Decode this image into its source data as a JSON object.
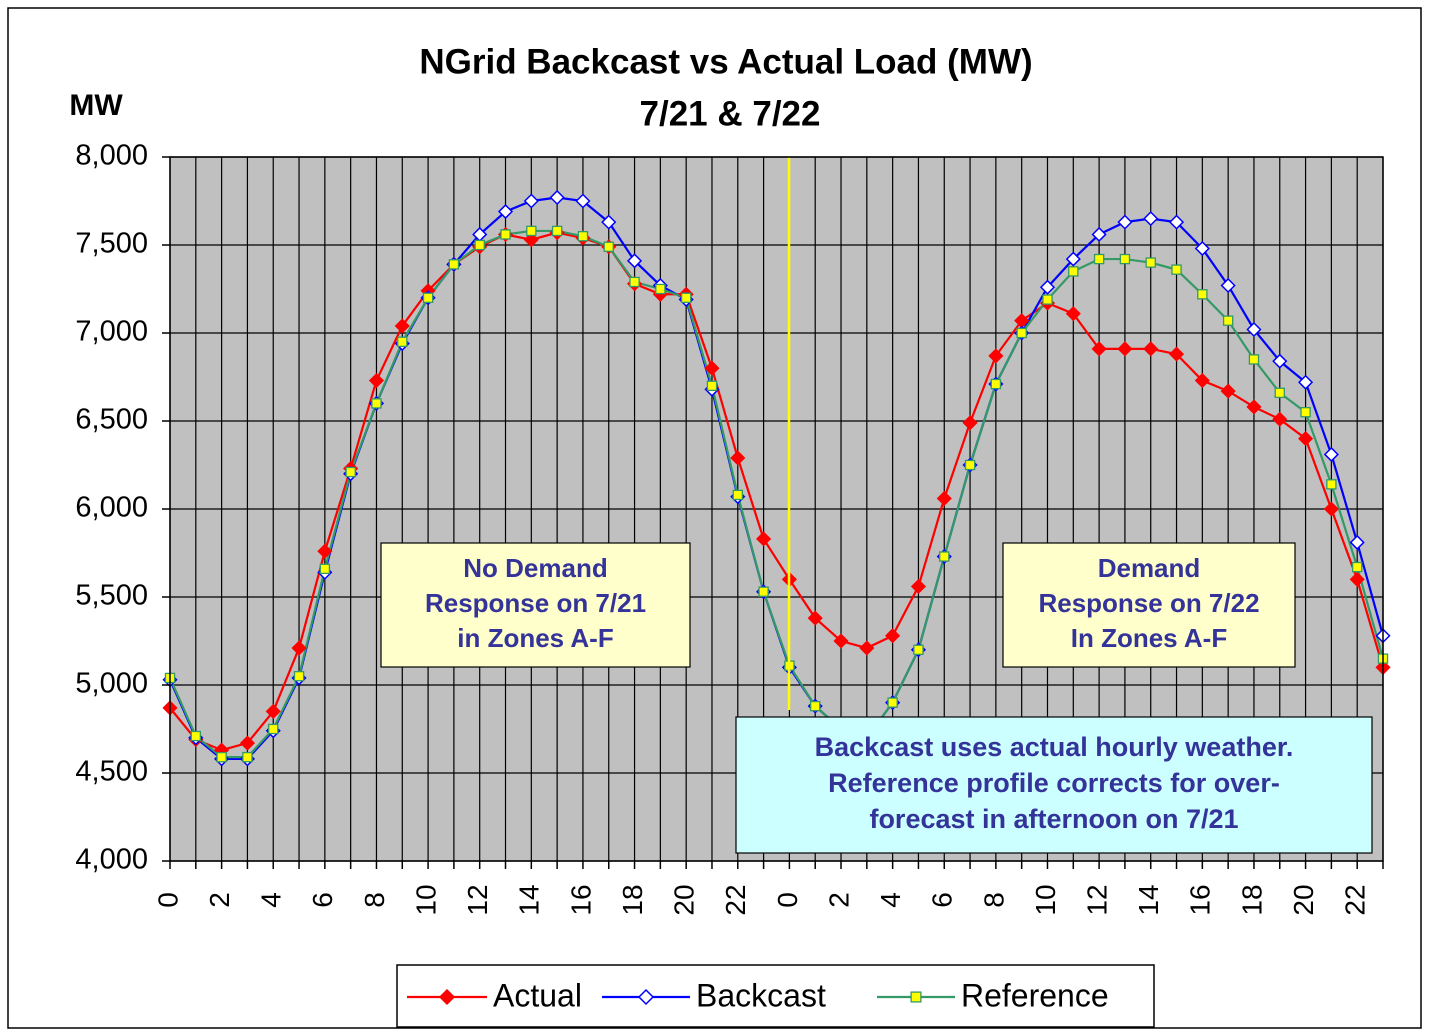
{
  "chart_data": {
    "type": "line",
    "title": "NGrid Backcast vs Actual Load (MW)",
    "subtitle": "7/21 & 7/22",
    "y_label": "MW",
    "categories": [
      "0",
      null,
      "2",
      null,
      "4",
      null,
      "6",
      null,
      "8",
      null,
      "10",
      null,
      "12",
      null,
      "14",
      null,
      "16",
      null,
      "18",
      null,
      "20",
      null,
      "22",
      null,
      "0",
      null,
      "2",
      null,
      "4",
      null,
      "6",
      null,
      "8",
      null,
      "10",
      null,
      "12",
      null,
      "14",
      null,
      "16",
      null,
      "18",
      null,
      "20",
      null,
      "22",
      null
    ],
    "series": [
      {
        "name": "Actual",
        "color": "#ff0000",
        "marker": "diamond",
        "marker_fill": "#ff0000",
        "values": [
          4870,
          4690,
          4630,
          4670,
          4850,
          5210,
          5760,
          6230,
          6730,
          7040,
          7240,
          7390,
          7490,
          7560,
          7530,
          7570,
          7540,
          7490,
          7280,
          7220,
          7220,
          6800,
          6290,
          5830,
          5600,
          5380,
          5250,
          5210,
          5280,
          5560,
          6060,
          6490,
          6870,
          7070,
          7170,
          7110,
          6910,
          6910,
          6910,
          6880,
          6730,
          6670,
          6580,
          6510,
          6400,
          6000,
          5600,
          5100
        ]
      },
      {
        "name": "Backcast",
        "color": "#0000ff",
        "marker": "diamond",
        "marker_fill": "#ffffff",
        "values": [
          5030,
          4700,
          4580,
          4580,
          4740,
          5040,
          5640,
          6200,
          6600,
          6940,
          7200,
          7390,
          7560,
          7690,
          7750,
          7770,
          7750,
          7630,
          7410,
          7270,
          7190,
          6680,
          6070,
          5530,
          5100,
          4880,
          4750,
          4700,
          4900,
          5200,
          5730,
          6250,
          6710,
          7000,
          7260,
          7420,
          7560,
          7630,
          7650,
          7630,
          7480,
          7270,
          7020,
          6840,
          6720,
          6310,
          5810,
          5280
        ]
      },
      {
        "name": "Reference",
        "color": "#339966",
        "marker": "square",
        "marker_fill": "#ffff00",
        "values": [
          5040,
          4710,
          4590,
          4590,
          4750,
          5050,
          5660,
          6210,
          6600,
          6950,
          7200,
          7390,
          7500,
          7560,
          7580,
          7580,
          7550,
          7490,
          7290,
          7250,
          7200,
          6700,
          6080,
          5530,
          5110,
          4880,
          4750,
          4700,
          4900,
          5200,
          5730,
          6250,
          6710,
          7000,
          7190,
          7350,
          7420,
          7420,
          7400,
          7360,
          7220,
          7070,
          6850,
          6660,
          6550,
          6140,
          5670,
          5150
        ]
      }
    ],
    "ylim": [
      4000,
      8000
    ],
    "yticks": [
      {
        "value": 4000,
        "label": "4,000"
      },
      {
        "value": 4500,
        "label": "4,500"
      },
      {
        "value": 5000,
        "label": "5,000"
      },
      {
        "value": 5500,
        "label": "5,500"
      },
      {
        "value": 6000,
        "label": "6,000"
      },
      {
        "value": 6500,
        "label": "6,500"
      },
      {
        "value": 7000,
        "label": "7,000"
      },
      {
        "value": 7500,
        "label": "7,500"
      },
      {
        "value": 8000,
        "label": "8,000"
      }
    ],
    "grid": true,
    "legend": "bottom",
    "annotations": [
      {
        "lines": [
          "No Demand",
          "Response on 7/21",
          "in Zones A-F"
        ]
      },
      {
        "lines": [
          "Demand",
          "Response on 7/22",
          "In Zones A-F"
        ]
      },
      {
        "lines": [
          "Backcast uses actual hourly weather.",
          "Reference profile corrects for over-",
          "forecast in afternoon on 7/21"
        ]
      }
    ]
  }
}
